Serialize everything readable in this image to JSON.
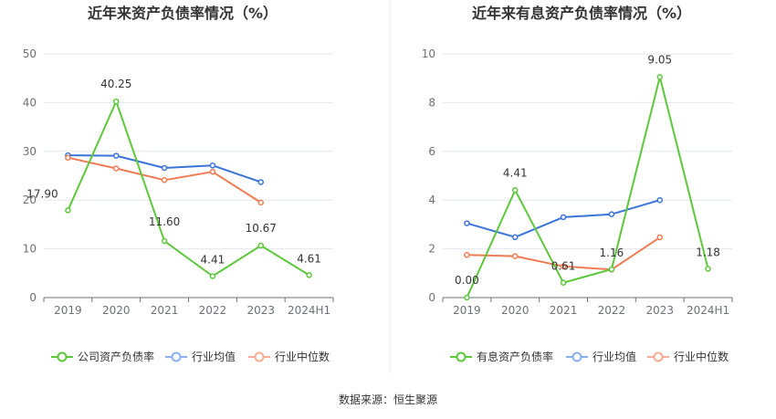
{
  "colors": {
    "company": "#5cc83a",
    "avg": "#3b74d9",
    "median": "#ef7b53",
    "legend_avg": "#8ab0ef",
    "legend_median": "#f4ad92",
    "grid": "#e4e7ef",
    "axis": "#6e7079"
  },
  "chart_data": [
    {
      "type": "line",
      "title": "近年来资产负债率情况（%）",
      "categories": [
        "2019",
        "2020",
        "2021",
        "2022",
        "2023",
        "2024H1"
      ],
      "ylim": [
        0,
        50
      ],
      "yticks": [
        0,
        10,
        20,
        30,
        40,
        50
      ],
      "series": [
        {
          "name": "公司资产负债率",
          "key": "company",
          "values": [
            17.9,
            40.25,
            11.6,
            4.41,
            10.67,
            4.61
          ],
          "labels": [
            "17.90",
            "40.25",
            "11.60",
            "4.41",
            "10.67",
            "4.61"
          ]
        },
        {
          "name": "行业均值",
          "key": "avg",
          "values": [
            29.2,
            29.1,
            26.6,
            27.1,
            23.7,
            null
          ]
        },
        {
          "name": "行业中位数",
          "key": "median",
          "values": [
            28.7,
            26.5,
            24.1,
            25.8,
            19.5,
            null
          ]
        }
      ]
    },
    {
      "type": "line",
      "title": "近年来有息资产负债率情况（%）",
      "categories": [
        "2019",
        "2020",
        "2021",
        "2022",
        "2023",
        "2024H1"
      ],
      "ylim": [
        0,
        10
      ],
      "yticks": [
        0,
        2,
        4,
        6,
        8,
        10
      ],
      "series": [
        {
          "name": "有息资产负债率",
          "key": "company",
          "values": [
            0.0,
            4.41,
            0.61,
            1.16,
            9.05,
            1.18
          ],
          "labels": [
            "0.00",
            "4.41",
            "0.61",
            "1.16",
            "9.05",
            "1.18"
          ]
        },
        {
          "name": "行业均值",
          "key": "avg",
          "values": [
            3.05,
            2.48,
            3.3,
            3.42,
            4.0,
            null
          ]
        },
        {
          "name": "行业中位数",
          "key": "median",
          "values": [
            1.75,
            1.7,
            1.28,
            1.15,
            2.47,
            null
          ]
        }
      ]
    }
  ],
  "footer": {
    "source": "数据来源：恒生聚源"
  }
}
